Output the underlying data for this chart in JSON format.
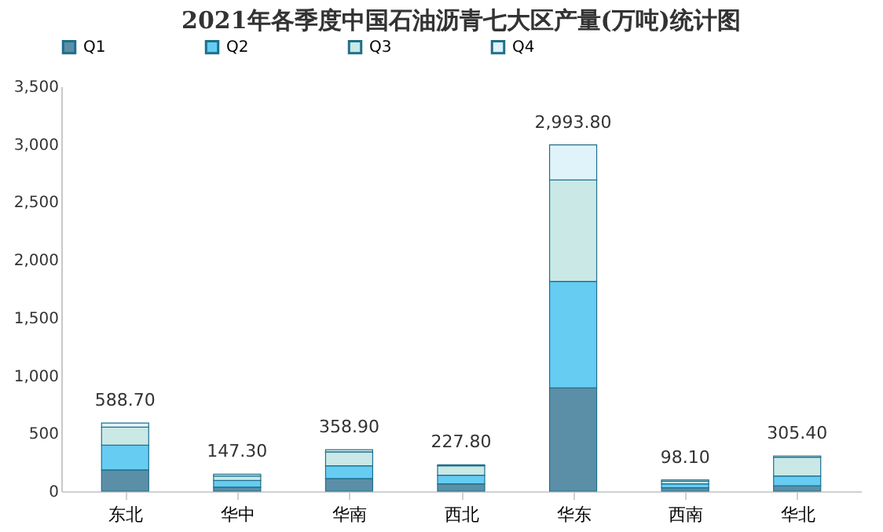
{
  "chart_data": {
    "type": "bar",
    "title": "2021年各季度中国石油沥青七大区产量(万吨)统计图",
    "categories": [
      "东北",
      "华中",
      "华南",
      "西北",
      "华东",
      "西南",
      "华北"
    ],
    "stacked": true,
    "series": [
      {
        "name": "Q1",
        "color": "#5b8fa8",
        "values": [
          184,
          35,
          109,
          63,
          893,
          29,
          46
        ]
      },
      {
        "name": "Q2",
        "color": "#66ccf2",
        "values": [
          213,
          57,
          110,
          75,
          921,
          34,
          86
        ]
      },
      {
        "name": "Q3",
        "color": "#c9e8e6",
        "values": [
          156,
          40,
          121,
          81,
          876,
          23,
          162
        ]
      },
      {
        "name": "Q4",
        "color": "#e0f3fa",
        "values": [
          35.7,
          15.3,
          18.9,
          8.8,
          303.8,
          12.1,
          11.4
        ]
      }
    ],
    "totals": [
      "588.70",
      "147.30",
      "358.90",
      "227.80",
      "2,993.80",
      "98.10",
      "305.40"
    ],
    "ylim": [
      0,
      3500
    ],
    "yticks": [
      {
        "value": 0,
        "label": "0"
      },
      {
        "value": 500,
        "label": "500"
      },
      {
        "value": 1000,
        "label": "1,000"
      },
      {
        "value": 1500,
        "label": "1,500"
      },
      {
        "value": 2000,
        "label": "2,000"
      },
      {
        "value": 2500,
        "label": "2,500"
      },
      {
        "value": 3000,
        "label": "3,000"
      },
      {
        "value": 3500,
        "label": "3,500"
      }
    ],
    "legend": "top",
    "grid": false
  }
}
